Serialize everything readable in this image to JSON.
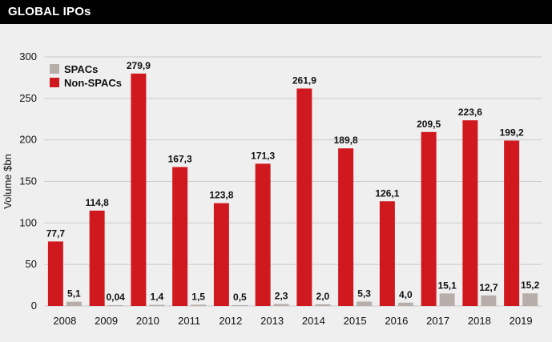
{
  "header": {
    "title": "GLOBAL IPOs"
  },
  "colors": {
    "non_spacs": "#d0191f",
    "spacs": "#b7aeaa",
    "grid": "#c9c9c9",
    "background": "#efefef"
  },
  "chart_data": {
    "type": "bar",
    "title": "GLOBAL IPOs",
    "xlabel": "",
    "ylabel": "Volume $bn",
    "ylim": [
      0,
      300
    ],
    "yticks": [
      0,
      50,
      100,
      150,
      200,
      250,
      300
    ],
    "grid": true,
    "legend_position": "top-left",
    "categories": [
      "2008",
      "2009",
      "2010",
      "2011",
      "2012",
      "2013",
      "2014",
      "2015",
      "2016",
      "2017",
      "2018",
      "2019"
    ],
    "series": [
      {
        "name": "Non-SPACs",
        "color": "#d0191f",
        "values": [
          77.7,
          114.8,
          279.9,
          167.3,
          123.8,
          171.3,
          261.9,
          189.8,
          126.1,
          209.5,
          223.6,
          199.2
        ],
        "labels": [
          "77,7",
          "114,8",
          "279,9",
          "167,3",
          "123,8",
          "171,3",
          "261,9",
          "189,8",
          "126,1",
          "209,5",
          "223,6",
          "199,2"
        ]
      },
      {
        "name": "SPACs",
        "color": "#b7aeaa",
        "values": [
          5.1,
          0.04,
          1.4,
          1.5,
          0.5,
          2.3,
          2.0,
          5.3,
          4.0,
          15.1,
          12.7,
          15.2
        ],
        "labels": [
          "5,1",
          "0,04",
          "1,4",
          "1,5",
          "0,5",
          "2,3",
          "2,0",
          "5,3",
          "4,0",
          "15,1",
          "12,7",
          "15,2"
        ]
      }
    ],
    "legend": [
      {
        "name": "SPACs",
        "color": "#b7aeaa"
      },
      {
        "name": "Non-SPACs",
        "color": "#d0191f"
      }
    ]
  }
}
